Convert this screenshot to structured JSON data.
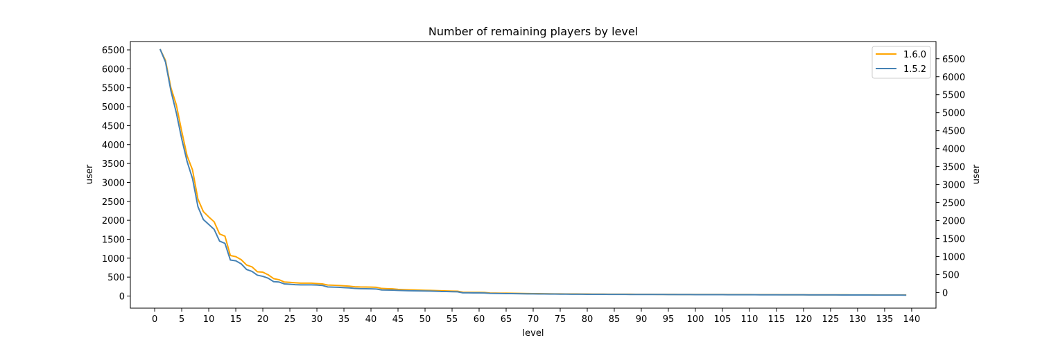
{
  "chart_data": {
    "type": "line",
    "title": "Number of remaining players by level",
    "xlabel": "level",
    "ylabel_left": "user",
    "ylabel_right": "user",
    "xlim": [
      -4.5,
      144.5
    ],
    "ylim": [
      -320,
      6720
    ],
    "x_ticks": [
      0,
      5,
      10,
      15,
      20,
      25,
      30,
      35,
      40,
      45,
      50,
      55,
      60,
      65,
      70,
      75,
      80,
      85,
      90,
      95,
      100,
      105,
      110,
      115,
      120,
      125,
      130,
      135,
      140
    ],
    "y_ticks_left": [
      0,
      500,
      1000,
      1500,
      2000,
      2500,
      3000,
      3500,
      4000,
      4500,
      5000,
      5500,
      6000,
      6500
    ],
    "y_ticks_right": [
      0,
      500,
      1000,
      1500,
      2000,
      2500,
      3000,
      3500,
      4000,
      4500,
      5000,
      5500,
      6000,
      6500
    ],
    "grid": false,
    "legend_position": "top-right",
    "series": [
      {
        "name": "1.6.0",
        "color": "#ffa500",
        "x": [
          1,
          2,
          3,
          4,
          5,
          6,
          7,
          8,
          9,
          10,
          11,
          12,
          13,
          14,
          15,
          16,
          17,
          18,
          19,
          20,
          21,
          22,
          23,
          24,
          25,
          26,
          27,
          28,
          29,
          30,
          31,
          32,
          33,
          34,
          35,
          36,
          37,
          38,
          39,
          40,
          41,
          42,
          43,
          44,
          45,
          46,
          47,
          48,
          49,
          50,
          51,
          52,
          53,
          54,
          55,
          56,
          57,
          58,
          59,
          60,
          61,
          62,
          63,
          64,
          65,
          66,
          67,
          68,
          69,
          70,
          71,
          72,
          73,
          74,
          75,
          76,
          77,
          78,
          79,
          80,
          81,
          82,
          83,
          84,
          85,
          86,
          87,
          88,
          89,
          90,
          91,
          92,
          93,
          94,
          95,
          96,
          97,
          98,
          99,
          100,
          101,
          102,
          103,
          104,
          105,
          106,
          107,
          108,
          109,
          110,
          111,
          112,
          113,
          114,
          115,
          116,
          117,
          118,
          119,
          120,
          121,
          122,
          123,
          124,
          125,
          126,
          127,
          128,
          129,
          130,
          131,
          132,
          133,
          134,
          135,
          136,
          137,
          138,
          139
        ],
        "values": [
          6520,
          6220,
          5500,
          5050,
          4350,
          3700,
          3330,
          2560,
          2230,
          2090,
          1960,
          1640,
          1580,
          1070,
          1040,
          960,
          820,
          770,
          640,
          630,
          560,
          460,
          430,
          370,
          360,
          350,
          340,
          340,
          340,
          330,
          320,
          290,
          285,
          280,
          270,
          260,
          245,
          240,
          238,
          235,
          230,
          200,
          195,
          190,
          175,
          170,
          165,
          160,
          155,
          150,
          148,
          145,
          140,
          135,
          130,
          128,
          100,
          98,
          96,
          95,
          94,
          80,
          78,
          76,
          75,
          73,
          70,
          68,
          66,
          65,
          64,
          62,
          60,
          58,
          57,
          56,
          55,
          54,
          53,
          52,
          51,
          50,
          50,
          49,
          48,
          48,
          47,
          47,
          46,
          46,
          45,
          45,
          44,
          44,
          43,
          43,
          42,
          42,
          42,
          41,
          41,
          41,
          40,
          40,
          40,
          39,
          39,
          38,
          38,
          38,
          37,
          37,
          36,
          36,
          36,
          35,
          35,
          34,
          34,
          34,
          33,
          33,
          33,
          32,
          32,
          31,
          31,
          31,
          30,
          30,
          30,
          29,
          29,
          28,
          28,
          28,
          27,
          27,
          27
        ],
        "line_width": 2
      },
      {
        "name": "1.5.2",
        "color": "#4682b4",
        "x": [
          1,
          2,
          3,
          4,
          5,
          6,
          7,
          8,
          9,
          10,
          11,
          12,
          13,
          14,
          15,
          16,
          17,
          18,
          19,
          20,
          21,
          22,
          23,
          24,
          25,
          26,
          27,
          28,
          29,
          30,
          31,
          32,
          33,
          34,
          35,
          36,
          37,
          38,
          39,
          40,
          41,
          42,
          43,
          44,
          45,
          46,
          47,
          48,
          49,
          50,
          51,
          52,
          53,
          54,
          55,
          56,
          57,
          58,
          59,
          60,
          61,
          62,
          63,
          64,
          65,
          66,
          67,
          68,
          69,
          70,
          71,
          72,
          73,
          74,
          75,
          76,
          77,
          78,
          79,
          80,
          81,
          82,
          83,
          84,
          85,
          86,
          87,
          88,
          89,
          90,
          91,
          92,
          93,
          94,
          95,
          96,
          97,
          98,
          99,
          100,
          101,
          102,
          103,
          104,
          105,
          106,
          107,
          108,
          109,
          110,
          111,
          112,
          113,
          114,
          115,
          116,
          117,
          118,
          119,
          120,
          121,
          122,
          123,
          124,
          125,
          126,
          127,
          128,
          129,
          130,
          131,
          132,
          133,
          134,
          135,
          136,
          137,
          138,
          139
        ],
        "values": [
          6520,
          6180,
          5420,
          4840,
          4150,
          3550,
          3100,
          2360,
          2020,
          1890,
          1760,
          1450,
          1390,
          950,
          930,
          850,
          700,
          650,
          550,
          520,
          470,
          380,
          370,
          320,
          310,
          300,
          295,
          295,
          295,
          290,
          280,
          240,
          235,
          230,
          222,
          215,
          200,
          195,
          192,
          190,
          185,
          160,
          158,
          155,
          148,
          145,
          140,
          138,
          135,
          132,
          130,
          125,
          120,
          118,
          115,
          112,
          85,
          84,
          83,
          82,
          81,
          70,
          68,
          66,
          65,
          64,
          62,
          60,
          58,
          57,
          56,
          55,
          53,
          52,
          51,
          50,
          49,
          48,
          47,
          46,
          46,
          45,
          45,
          44,
          44,
          43,
          43,
          42,
          42,
          41,
          41,
          40,
          40,
          40,
          39,
          39,
          38,
          38,
          38,
          37,
          37,
          37,
          36,
          36,
          36,
          35,
          35,
          35,
          34,
          34,
          34,
          33,
          33,
          33,
          32,
          32,
          32,
          31,
          31,
          31,
          30,
          30,
          30,
          29,
          29,
          29,
          28,
          28,
          28,
          27,
          27,
          27,
          26,
          26,
          26,
          25,
          25,
          25,
          24
        ],
        "line_width": 2
      }
    ]
  }
}
